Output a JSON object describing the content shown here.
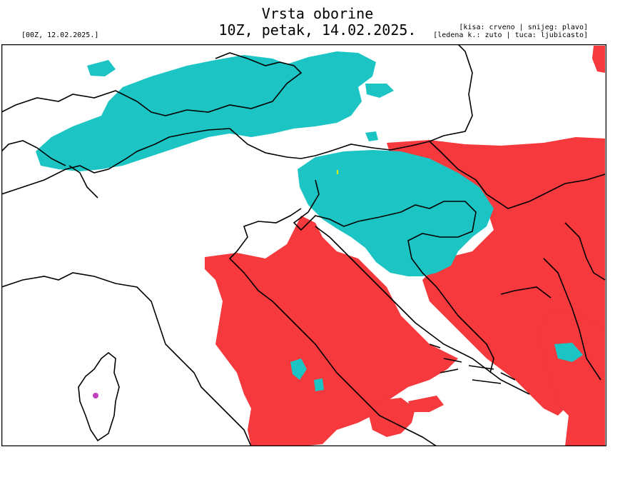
{
  "header": {
    "title": "Vrsta oborine",
    "subtitle": "10Z, petak, 14.02.2025.",
    "init_label": "[00Z, 12.02.2025.]",
    "legend_line1": "[kisa: crveno | snijeg: plavo]",
    "legend_line2": "[ledena k.: zuto | tuca: ljubicasto]"
  },
  "colors": {
    "rain": "#f5393d",
    "snow": "#1cc4c4",
    "freezing_rain": "#e8e800",
    "hail": "#c040c0",
    "borders": "#000000",
    "background": "#ffffff"
  }
}
